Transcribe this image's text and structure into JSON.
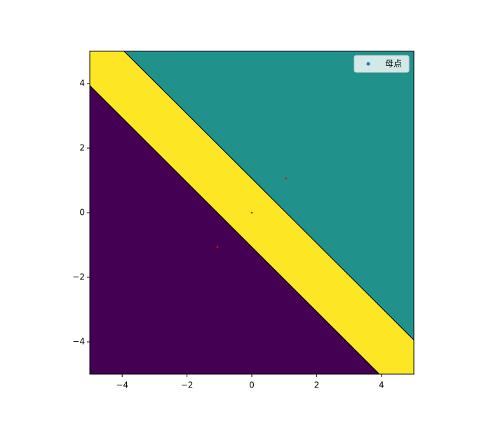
{
  "chart_data": {
    "type": "voronoi",
    "series": [
      {
        "name": "母点",
        "color": "#1f77b4",
        "point_color": "#ff0000",
        "x": [
          -1.06,
          0,
          1.06
        ],
        "values": [
          -1.06,
          0,
          1.06
        ]
      }
    ],
    "region_colors": [
      "#440154",
      "#fde725",
      "#21918c"
    ],
    "xlim": [
      -5,
      5
    ],
    "ylim": [
      -5,
      5
    ],
    "xticks": [
      {
        "value": -4,
        "label": "−4"
      },
      {
        "value": -2,
        "label": "−2"
      },
      0,
      2,
      4
    ],
    "yticks": [
      {
        "value": -4,
        "label": "−4"
      },
      {
        "value": -2,
        "label": "−2"
      },
      0,
      2,
      4
    ],
    "legend": "upper right"
  }
}
